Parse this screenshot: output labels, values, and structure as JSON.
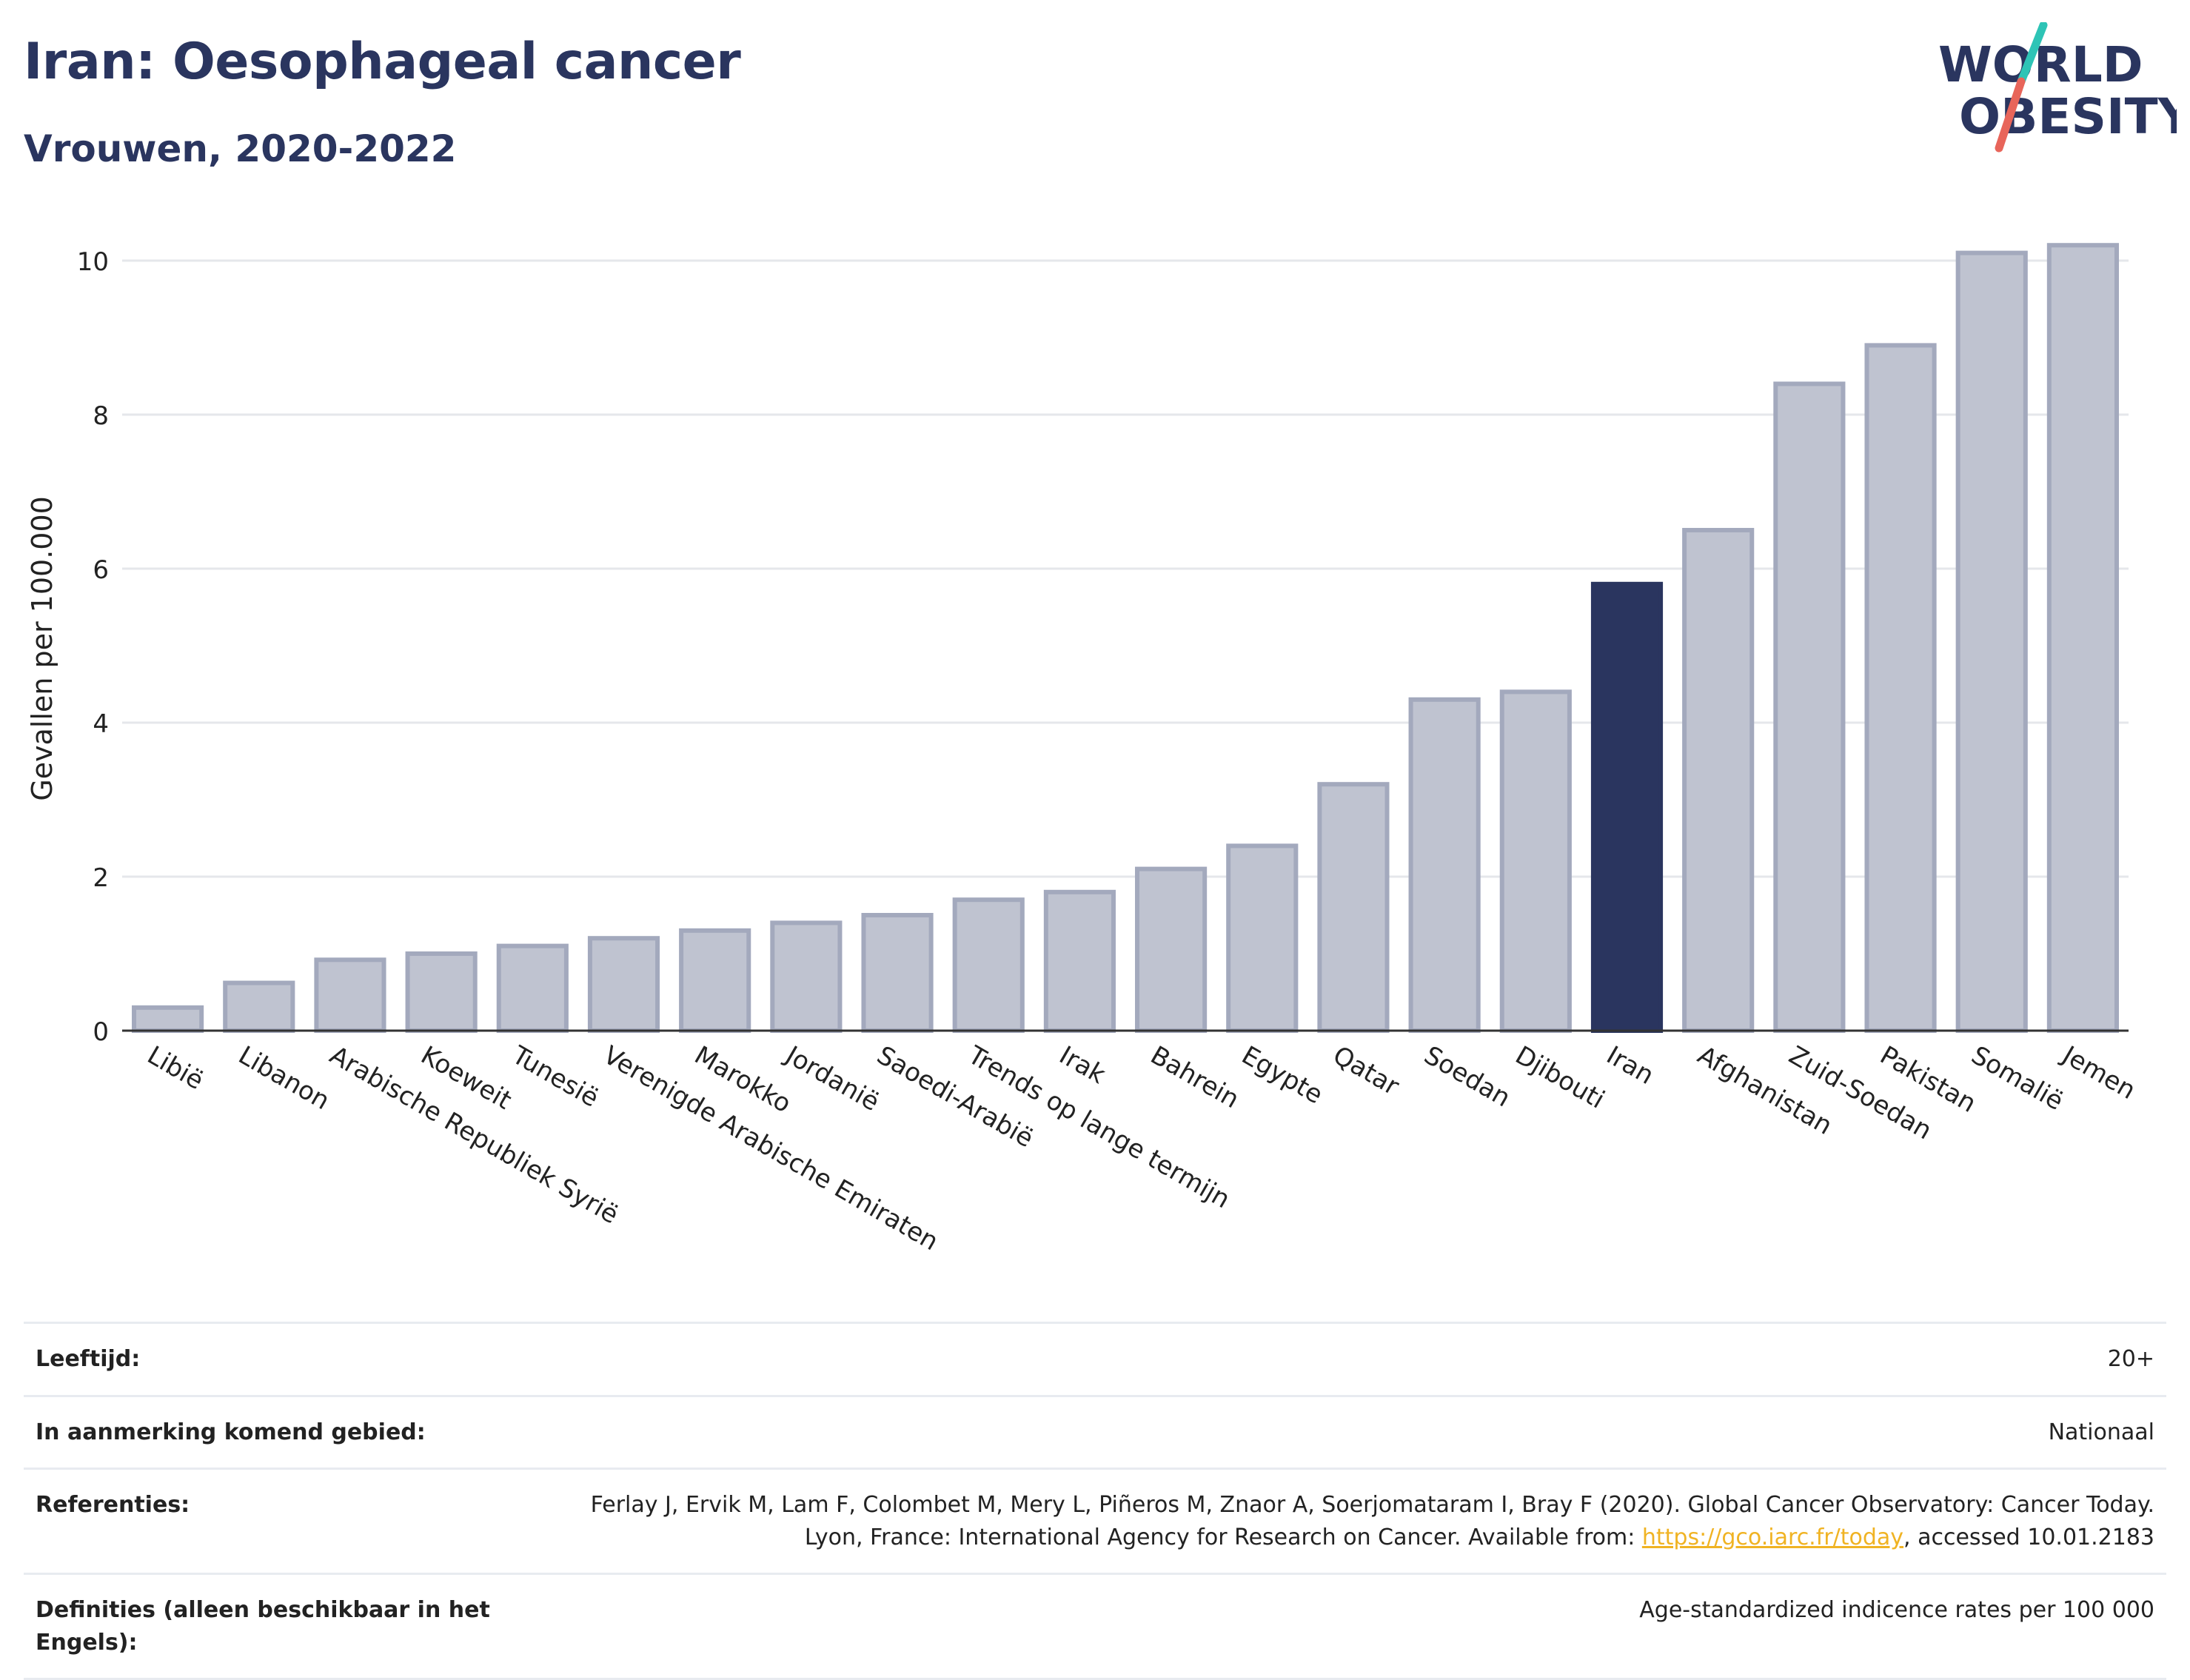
{
  "header": {
    "title": "Iran: Oesophageal cancer",
    "subtitle": "Vrouwen, 2020-2022"
  },
  "logo": {
    "line1": "WORLD",
    "line2": "OBESITY",
    "colors": {
      "text": "#2a355f",
      "slash_top": "#2ec4b6",
      "slash_bottom": "#e8655a"
    }
  },
  "chart_data": {
    "type": "bar",
    "ylabel": "Gevallen per 100.000",
    "xlabel": "",
    "ylim": [
      0,
      10.5
    ],
    "yticks": [
      0,
      2,
      4,
      6,
      8,
      10
    ],
    "grid": true,
    "highlight": "Iran",
    "colors": {
      "bar": "#bfc3d0",
      "bar_edge": "#a3a9bd",
      "highlight": "#2a355f",
      "grid": "#e5e7eb",
      "axis": "#333333"
    },
    "categories": [
      "Libië",
      "Libanon",
      "Arabische Republiek Syrië",
      "Koeweit",
      "Tunesië",
      "Verenigde Arabische Emiraten",
      "Marokko",
      "Jordanië",
      "Saoedi-Arabië",
      "Trends op lange termijn",
      "Irak",
      "Bahrein",
      "Egypte",
      "Qatar",
      "Soedan",
      "Djibouti",
      "Iran",
      "Afghanistan",
      "Zuid-Soedan",
      "Pakistan",
      "Somalië",
      "Jemen"
    ],
    "values": [
      0.3,
      0.62,
      0.92,
      1.0,
      1.1,
      1.2,
      1.3,
      1.4,
      1.5,
      1.7,
      1.8,
      2.1,
      2.4,
      3.2,
      4.3,
      4.4,
      5.8,
      6.5,
      8.4,
      8.9,
      10.1,
      10.2
    ]
  },
  "info": {
    "rows": [
      {
        "key": "Leeftijd:",
        "value": "20+"
      },
      {
        "key": "In aanmerking komend gebied:",
        "value": "Nationaal"
      },
      {
        "key": "Referenties:",
        "value": "Ferlay J, Ervik M, Lam F, Colombet M, Mery L, Piñeros M, Znaor A, Soerjomataram I, Bray F (2020). Global Cancer Observatory: Cancer Today. Lyon, France: International Agency for Research on Cancer. Available from: ",
        "link": "https://gco.iarc.fr/today",
        "suffix": ", accessed 10.01.2183"
      },
      {
        "key": "Definities (alleen beschikbaar in het Engels):",
        "value": "Age-standardized indicence rates per 100 000"
      }
    ]
  }
}
